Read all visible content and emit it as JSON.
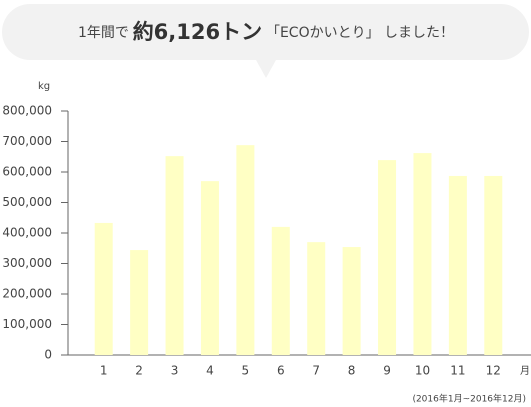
{
  "chart_data": {
    "type": "bar",
    "title": [
      "1年間で",
      "約6,126トン",
      "「ECOかいとり」 しました！"
    ],
    "y_label": "kg",
    "x_label": "月",
    "note": "(2016年1月~2016年12月)",
    "categories": [
      "1",
      "2",
      "3",
      "4",
      "5",
      "6",
      "7",
      "8",
      "9",
      "10",
      "11",
      "12"
    ],
    "values": [
      433000,
      344000,
      652000,
      570000,
      688000,
      420000,
      370000,
      354000,
      639000,
      662000,
      587000,
      587000
    ],
    "color": "#ffffc4",
    "ylim": [
      0,
      800000
    ],
    "yticks": [
      0,
      {
        "value": 100000,
        "label": "100,000"
      },
      {
        "value": 200000,
        "label": "200,000"
      },
      {
        "value": 300000,
        "label": "300,000"
      },
      {
        "value": 400000,
        "label": "400,000"
      },
      {
        "value": 500000,
        "label": "500,000"
      },
      {
        "value": 600000,
        "label": "600,000"
      },
      {
        "value": 700000,
        "label": "700,000"
      },
      {
        "value": 800000,
        "label": "800,000"
      }
    ],
    "grid": false
  }
}
